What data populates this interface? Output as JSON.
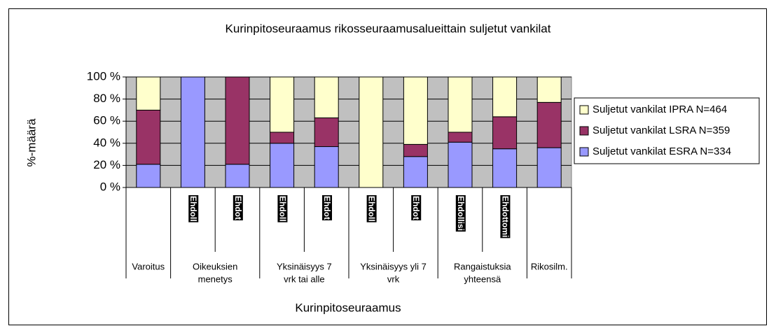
{
  "chart_data": {
    "type": "bar",
    "stacked": true,
    "title": "Kurinpitoseuraamus rikosseuraamusalueittain suljetut vankilat",
    "y_label": "%-määrä",
    "x_label": "Kurinpitoseuraamus",
    "plot_background": "#c0c0c0",
    "groups": [
      {
        "name": [
          "Varoitus"
        ],
        "categories": [
          null
        ]
      },
      {
        "name": [
          "Oikeuksien",
          "menetys"
        ],
        "categories": [
          "Ehdoll",
          "Ehdot"
        ]
      },
      {
        "name": [
          "Yksinäisyys 7",
          "vrk tai alle"
        ],
        "categories": [
          "Ehdoll",
          "Ehdot"
        ]
      },
      {
        "name": [
          "Yksinäisyys yli 7",
          "vrk"
        ],
        "categories": [
          "Ehdoll",
          "Ehdot"
        ]
      },
      {
        "name": [
          "Rangaistuksia",
          "yhteensä"
        ],
        "categories": [
          "Ehdollisi",
          "Ehdottomi"
        ]
      },
      {
        "name": [
          "Rikosilm."
        ],
        "categories": [
          null
        ]
      }
    ],
    "series": [
      {
        "name": "Suljetut vankilat ESRA N=334",
        "color": "#9999ff",
        "values": [
          21,
          100,
          21,
          40,
          37,
          0,
          28,
          41,
          35,
          36
        ]
      },
      {
        "name": "Suljetut vankilat LSRA N=359",
        "color": "#993366",
        "values": [
          49,
          0,
          79,
          10,
          26,
          0,
          11,
          9,
          29,
          41
        ]
      },
      {
        "name": "Suljetut vankilat IPRA N=464",
        "color": "#ffffcc",
        "values": [
          30,
          0,
          0,
          50,
          37,
          100,
          61,
          50,
          36,
          23
        ]
      }
    ],
    "ylim": [
      0,
      100
    ],
    "yticks": [
      {
        "value": 0,
        "label": "0 %"
      },
      {
        "value": 20,
        "label": "20 %"
      },
      {
        "value": 40,
        "label": "40 %"
      },
      {
        "value": 60,
        "label": "60 %"
      },
      {
        "value": 80,
        "label": "80 %"
      },
      {
        "value": 100,
        "label": "100 %"
      }
    ],
    "grid": true,
    "legend": "right"
  }
}
